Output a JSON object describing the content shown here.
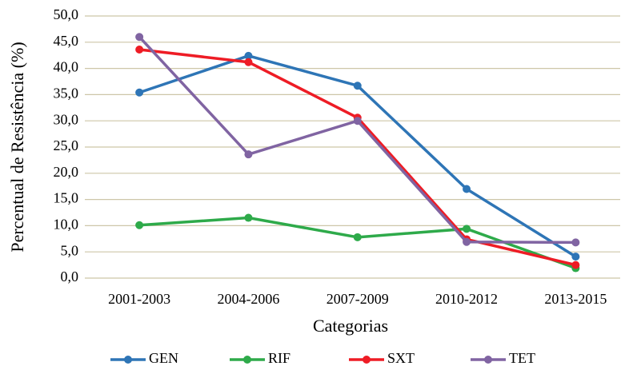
{
  "chart_data": {
    "type": "line",
    "xlabel": "Categorias",
    "ylabel": "Percentual de Resistência (%)",
    "categories": [
      "2001-2003",
      "2004-2006",
      "2007-2009",
      "2010-2012",
      "2013-2015"
    ],
    "series": [
      {
        "name": "GEN",
        "color": "#2e75b6",
        "values": [
          35.4,
          42.4,
          36.7,
          17.0,
          4.1
        ]
      },
      {
        "name": "RIF",
        "color": "#2eaa4a",
        "values": [
          10.1,
          11.5,
          7.8,
          9.4,
          1.9
        ]
      },
      {
        "name": "SXT",
        "color": "#ee1c25",
        "values": [
          43.6,
          41.2,
          30.6,
          7.4,
          2.5
        ]
      },
      {
        "name": "TET",
        "color": "#8064a2",
        "values": [
          46.0,
          23.6,
          30.0,
          6.9,
          6.8
        ]
      }
    ],
    "ylim": [
      0,
      50
    ],
    "yticks": [
      {
        "value": 0,
        "label": "0,0"
      },
      {
        "value": 5,
        "label": "5,0"
      },
      {
        "value": 10,
        "label": "10,0"
      },
      {
        "value": 15,
        "label": "15,0"
      },
      {
        "value": 20,
        "label": "20,0"
      },
      {
        "value": 25,
        "label": "25,0"
      },
      {
        "value": 30,
        "label": "30,0"
      },
      {
        "value": 35,
        "label": "35,0"
      },
      {
        "value": 40,
        "label": "40,0"
      },
      {
        "value": 45,
        "label": "45,0"
      },
      {
        "value": 50,
        "label": "50,0"
      }
    ],
    "grid": true,
    "legend": "bottom"
  }
}
